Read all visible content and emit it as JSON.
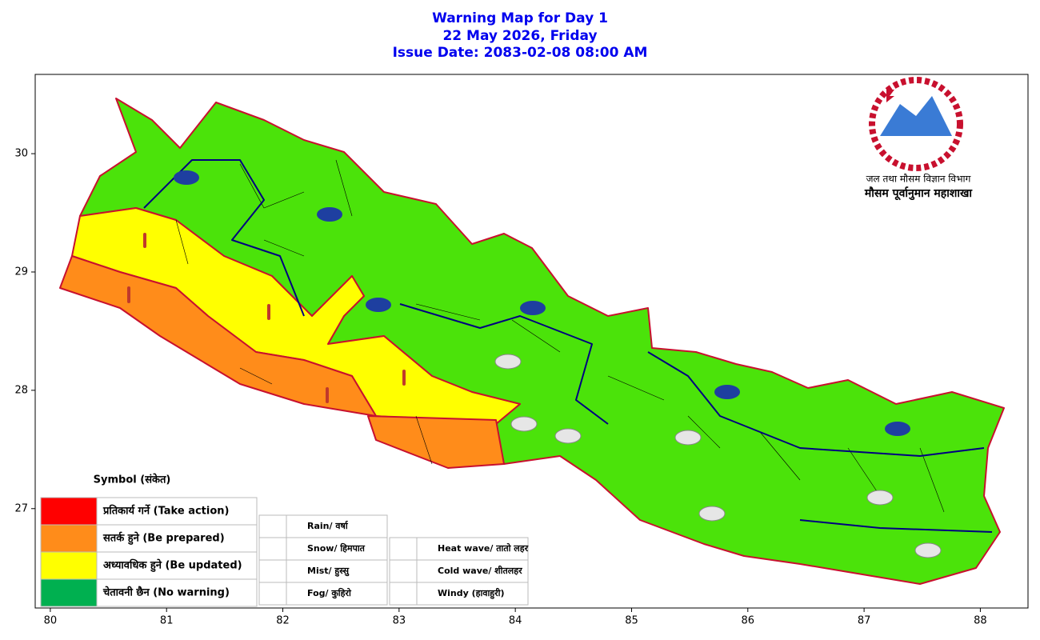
{
  "header": {
    "title_lines": [
      "Warning Map for Day 1",
      "22 May 2026, Friday",
      "Issue Date: 2083-02-08 08:00 AM"
    ]
  },
  "map": {
    "xlim": [
      79.87,
      88.41
    ],
    "ylim": [
      26.16,
      30.67
    ],
    "xticks": [
      80,
      81,
      82,
      83,
      84,
      85,
      86,
      87,
      88
    ],
    "yticks": [
      27,
      28,
      29,
      30
    ]
  },
  "legend": {
    "title": "Symbol (संकेत)",
    "levels": [
      {
        "label": "प्रतिकार्य गर्ने (Take action)",
        "color": "#ff0000"
      },
      {
        "label": "सतर्क हुने (Be prepared)",
        "color": "#ff8c1a"
      },
      {
        "label": "अध्यावधिक हुने (Be updated)",
        "color": "#ffff00"
      },
      {
        "label": "चेतावनी छैन (No warning)",
        "color": "#00b050"
      }
    ]
  },
  "symbols": [
    "Rain/ वर्षा",
    "Snow/ हिमपात",
    "Mist/ हुस्सु",
    "Fog/ कुहिरो",
    "Heat wave/ तातो लहर",
    "Cold wave/ शीतलहर",
    "Windy (हावाहुरी)"
  ],
  "logo": {
    "line1": "जल तथा मौसम विज्ञान विभाग",
    "line2": "मौसम पूर्वानुमान महाशाखा"
  }
}
